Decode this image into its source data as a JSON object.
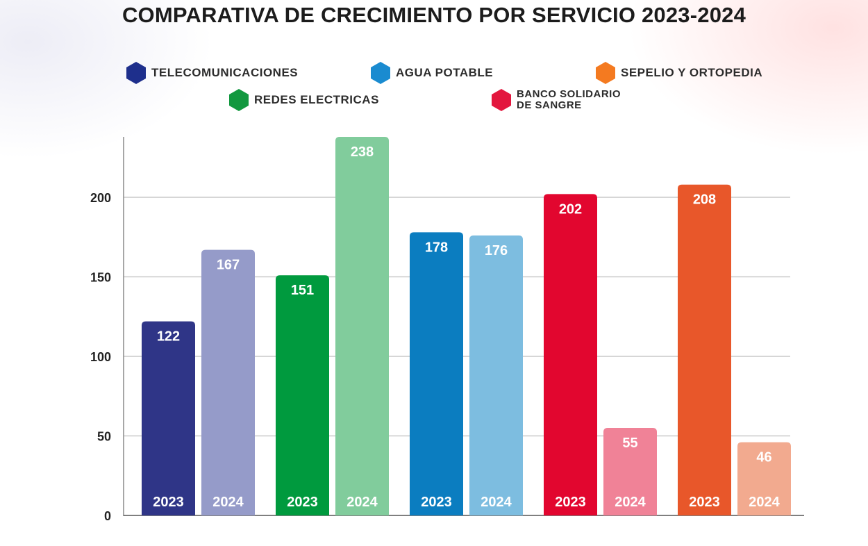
{
  "title": "COMPARATIVA DE CRECIMIENTO POR SERVICIO 2023-2024",
  "legend": [
    {
      "label": "TELECOMUNICACIONES",
      "color": "#1e2f8c",
      "icon": "hexagon-icon"
    },
    {
      "label": "AGUA POTABLE",
      "color": "#1a8bd0",
      "icon": "hexagon-icon"
    },
    {
      "label": "SEPELIO Y ORTOPEDIA",
      "color": "#f47a20",
      "icon": "hexagon-icon"
    },
    {
      "label": "REDES ELECTRICAS",
      "color": "#12983f",
      "icon": "hexagon-icon"
    },
    {
      "label": "BANCO SOLIDARIO DE SANGRE",
      "color": "#e3173e",
      "icon": "hexagon-icon"
    }
  ],
  "chart_data": {
    "type": "bar",
    "ylim": [
      0,
      238
    ],
    "yticks": [
      0,
      50,
      100,
      150,
      200
    ],
    "grid": true,
    "legend_position": "top",
    "groups": [
      {
        "series": "TELECOMUNICACIONES",
        "bars": [
          {
            "year": "2023",
            "value": 122,
            "color": "#2f3587"
          },
          {
            "year": "2024",
            "value": 167,
            "color": "#959bc9"
          }
        ]
      },
      {
        "series": "REDES ELECTRICAS",
        "bars": [
          {
            "year": "2023",
            "value": 151,
            "color": "#009a3e"
          },
          {
            "year": "2024",
            "value": 238,
            "color": "#81cc9c"
          }
        ]
      },
      {
        "series": "AGUA POTABLE",
        "bars": [
          {
            "year": "2023",
            "value": 178,
            "color": "#0b7dc0"
          },
          {
            "year": "2024",
            "value": 176,
            "color": "#7dbde0"
          }
        ]
      },
      {
        "series": "BANCO SOLIDARIO DE SANGRE",
        "bars": [
          {
            "year": "2023",
            "value": 202,
            "color": "#e2062f"
          },
          {
            "year": "2024",
            "value": 55,
            "color": "#f08297"
          }
        ]
      },
      {
        "series": "SEPELIO Y ORTOPEDIA",
        "bars": [
          {
            "year": "2023",
            "value": 208,
            "color": "#e8572a"
          },
          {
            "year": "2024",
            "value": 46,
            "color": "#f2aa8f"
          }
        ]
      }
    ]
  }
}
